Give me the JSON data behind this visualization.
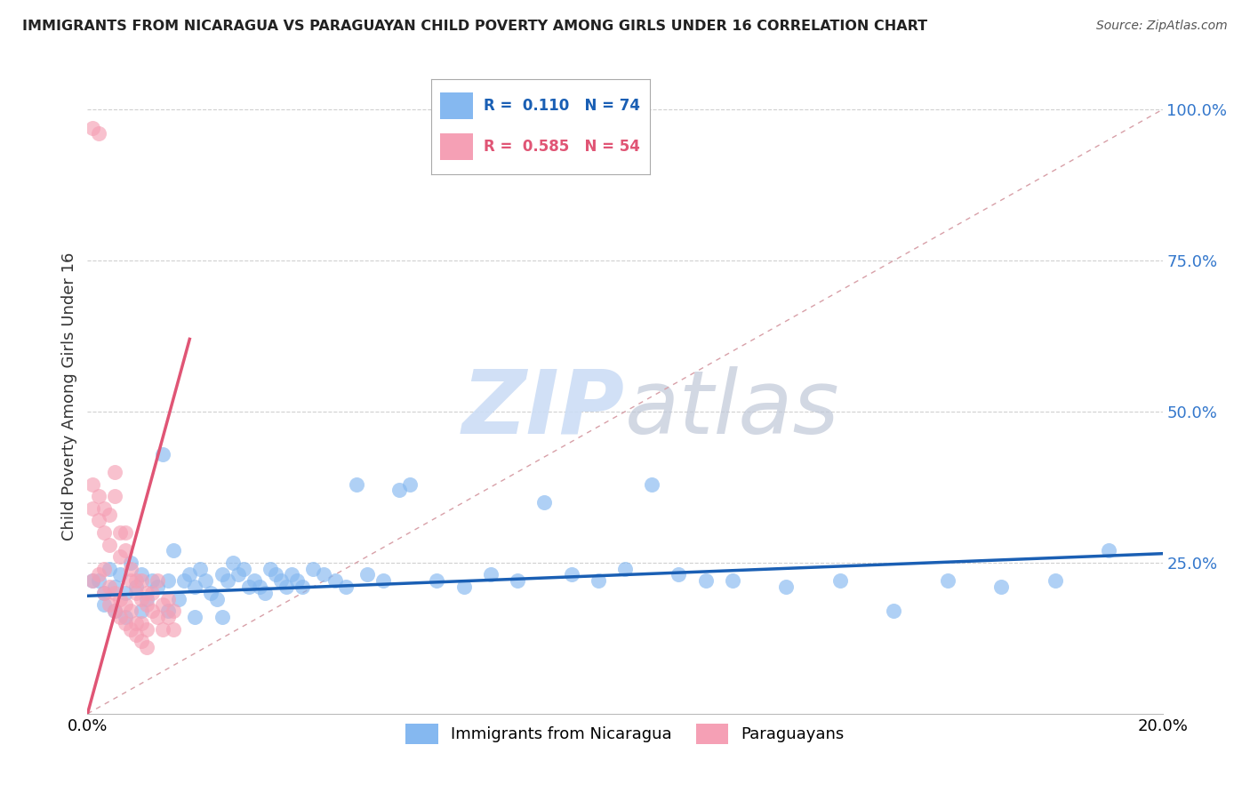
{
  "title": "IMMIGRANTS FROM NICARAGUA VS PARAGUAYAN CHILD POVERTY AMONG GIRLS UNDER 16 CORRELATION CHART",
  "source": "Source: ZipAtlas.com",
  "ylabel": "Child Poverty Among Girls Under 16",
  "xlim": [
    0.0,
    0.2
  ],
  "ylim": [
    0.0,
    1.05
  ],
  "ytick_vals": [
    0.25,
    0.5,
    0.75,
    1.0
  ],
  "ytick_labels": [
    "25.0%",
    "50.0%",
    "75.0%",
    "100.0%"
  ],
  "xtick_vals": [
    0.0,
    0.2
  ],
  "xtick_labels": [
    "0.0%",
    "20.0%"
  ],
  "legend_blue_R": "0.110",
  "legend_blue_N": "74",
  "legend_pink_R": "0.585",
  "legend_pink_N": "54",
  "legend_blue_label": "Immigrants from Nicaragua",
  "legend_pink_label": "Paraguayans",
  "blue_color": "#85b8f0",
  "pink_color": "#f5a0b5",
  "trendline_blue_color": "#1a5fb4",
  "trendline_pink_color": "#e05575",
  "diag_color": "#d8a0a8",
  "watermark_color": "#ccddf5",
  "background_color": "#ffffff",
  "grid_color": "#d0d0d0",
  "title_color": "#222222",
  "source_color": "#555555",
  "yticklabel_color": "#3377cc",
  "blue_scatter": [
    [
      0.002,
      0.22
    ],
    [
      0.003,
      0.2
    ],
    [
      0.004,
      0.24
    ],
    [
      0.005,
      0.21
    ],
    [
      0.006,
      0.23
    ],
    [
      0.007,
      0.2
    ],
    [
      0.008,
      0.25
    ],
    [
      0.009,
      0.21
    ],
    [
      0.01,
      0.23
    ],
    [
      0.011,
      0.19
    ],
    [
      0.012,
      0.22
    ],
    [
      0.013,
      0.21
    ],
    [
      0.014,
      0.43
    ],
    [
      0.015,
      0.22
    ],
    [
      0.016,
      0.27
    ],
    [
      0.017,
      0.19
    ],
    [
      0.018,
      0.22
    ],
    [
      0.019,
      0.23
    ],
    [
      0.02,
      0.21
    ],
    [
      0.021,
      0.24
    ],
    [
      0.022,
      0.22
    ],
    [
      0.023,
      0.2
    ],
    [
      0.024,
      0.19
    ],
    [
      0.025,
      0.23
    ],
    [
      0.026,
      0.22
    ],
    [
      0.027,
      0.25
    ],
    [
      0.028,
      0.23
    ],
    [
      0.029,
      0.24
    ],
    [
      0.03,
      0.21
    ],
    [
      0.031,
      0.22
    ],
    [
      0.032,
      0.21
    ],
    [
      0.033,
      0.2
    ],
    [
      0.034,
      0.24
    ],
    [
      0.035,
      0.23
    ],
    [
      0.036,
      0.22
    ],
    [
      0.037,
      0.21
    ],
    [
      0.038,
      0.23
    ],
    [
      0.039,
      0.22
    ],
    [
      0.04,
      0.21
    ],
    [
      0.042,
      0.24
    ],
    [
      0.044,
      0.23
    ],
    [
      0.046,
      0.22
    ],
    [
      0.048,
      0.21
    ],
    [
      0.05,
      0.38
    ],
    [
      0.052,
      0.23
    ],
    [
      0.055,
      0.22
    ],
    [
      0.058,
      0.37
    ],
    [
      0.06,
      0.38
    ],
    [
      0.065,
      0.22
    ],
    [
      0.07,
      0.21
    ],
    [
      0.075,
      0.23
    ],
    [
      0.08,
      0.22
    ],
    [
      0.085,
      0.35
    ],
    [
      0.09,
      0.23
    ],
    [
      0.095,
      0.22
    ],
    [
      0.1,
      0.24
    ],
    [
      0.105,
      0.38
    ],
    [
      0.11,
      0.23
    ],
    [
      0.115,
      0.22
    ],
    [
      0.12,
      0.22
    ],
    [
      0.13,
      0.21
    ],
    [
      0.14,
      0.22
    ],
    [
      0.15,
      0.17
    ],
    [
      0.16,
      0.22
    ],
    [
      0.17,
      0.21
    ],
    [
      0.001,
      0.22
    ],
    [
      0.003,
      0.18
    ],
    [
      0.005,
      0.17
    ],
    [
      0.007,
      0.16
    ],
    [
      0.01,
      0.17
    ],
    [
      0.015,
      0.17
    ],
    [
      0.02,
      0.16
    ],
    [
      0.025,
      0.16
    ],
    [
      0.18,
      0.22
    ],
    [
      0.19,
      0.27
    ]
  ],
  "pink_scatter": [
    [
      0.001,
      0.97
    ],
    [
      0.002,
      0.96
    ],
    [
      0.001,
      0.38
    ],
    [
      0.001,
      0.34
    ],
    [
      0.002,
      0.32
    ],
    [
      0.002,
      0.36
    ],
    [
      0.003,
      0.3
    ],
    [
      0.003,
      0.34
    ],
    [
      0.004,
      0.28
    ],
    [
      0.004,
      0.33
    ],
    [
      0.005,
      0.4
    ],
    [
      0.005,
      0.36
    ],
    [
      0.006,
      0.3
    ],
    [
      0.006,
      0.26
    ],
    [
      0.007,
      0.3
    ],
    [
      0.007,
      0.27
    ],
    [
      0.008,
      0.24
    ],
    [
      0.008,
      0.22
    ],
    [
      0.009,
      0.22
    ],
    [
      0.009,
      0.2
    ],
    [
      0.01,
      0.22
    ],
    [
      0.01,
      0.19
    ],
    [
      0.011,
      0.18
    ],
    [
      0.011,
      0.2
    ],
    [
      0.012,
      0.2
    ],
    [
      0.012,
      0.17
    ],
    [
      0.013,
      0.22
    ],
    [
      0.013,
      0.16
    ],
    [
      0.014,
      0.18
    ],
    [
      0.014,
      0.14
    ],
    [
      0.015,
      0.19
    ],
    [
      0.015,
      0.16
    ],
    [
      0.016,
      0.17
    ],
    [
      0.016,
      0.14
    ],
    [
      0.001,
      0.22
    ],
    [
      0.002,
      0.23
    ],
    [
      0.003,
      0.24
    ],
    [
      0.003,
      0.2
    ],
    [
      0.004,
      0.21
    ],
    [
      0.004,
      0.18
    ],
    [
      0.005,
      0.2
    ],
    [
      0.005,
      0.17
    ],
    [
      0.006,
      0.19
    ],
    [
      0.006,
      0.16
    ],
    [
      0.007,
      0.18
    ],
    [
      0.007,
      0.15
    ],
    [
      0.008,
      0.17
    ],
    [
      0.008,
      0.14
    ],
    [
      0.009,
      0.15
    ],
    [
      0.009,
      0.13
    ],
    [
      0.01,
      0.15
    ],
    [
      0.01,
      0.12
    ],
    [
      0.011,
      0.14
    ],
    [
      0.011,
      0.11
    ]
  ],
  "pink_trendline": [
    [
      0.0,
      0.0
    ],
    [
      0.019,
      0.62
    ]
  ],
  "blue_trendline": [
    [
      0.0,
      0.195
    ],
    [
      0.2,
      0.265
    ]
  ]
}
